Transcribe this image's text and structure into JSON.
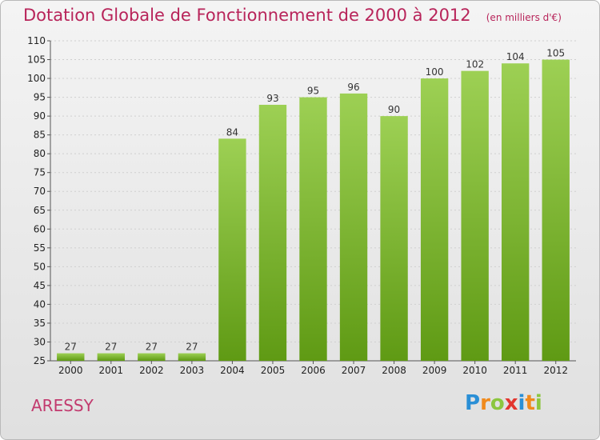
{
  "header": {
    "title": "Dotation Globale de Fonctionnement de 2000 à 2012",
    "unit": "(en milliers d'€)"
  },
  "footer": {
    "commune": "ARESSY",
    "logo_letters": [
      "P",
      "r",
      "o",
      "x",
      "i",
      "t",
      "i"
    ],
    "logo_colors": [
      "#2a8fd6",
      "#f08a1c",
      "#8cc63f",
      "#e2362f",
      "#2a8fd6",
      "#f08a1c",
      "#8cc63f"
    ]
  },
  "chart_data": {
    "type": "bar",
    "title": "Dotation Globale de Fonctionnement de 2000 à 2012",
    "categories": [
      "2000",
      "2001",
      "2002",
      "2003",
      "2004",
      "2005",
      "2006",
      "2007",
      "2008",
      "2009",
      "2010",
      "2011",
      "2012"
    ],
    "values": [
      27,
      27,
      27,
      27,
      84,
      93,
      95,
      96,
      90,
      100,
      102,
      104,
      105
    ],
    "ylim": [
      25,
      110
    ],
    "yticks": [
      25,
      30,
      35,
      40,
      45,
      50,
      55,
      60,
      65,
      70,
      75,
      80,
      85,
      90,
      95,
      100,
      105,
      110
    ],
    "grid": true,
    "bar_color_top": "#9dd054",
    "bar_color_bottom": "#5f9a14"
  }
}
